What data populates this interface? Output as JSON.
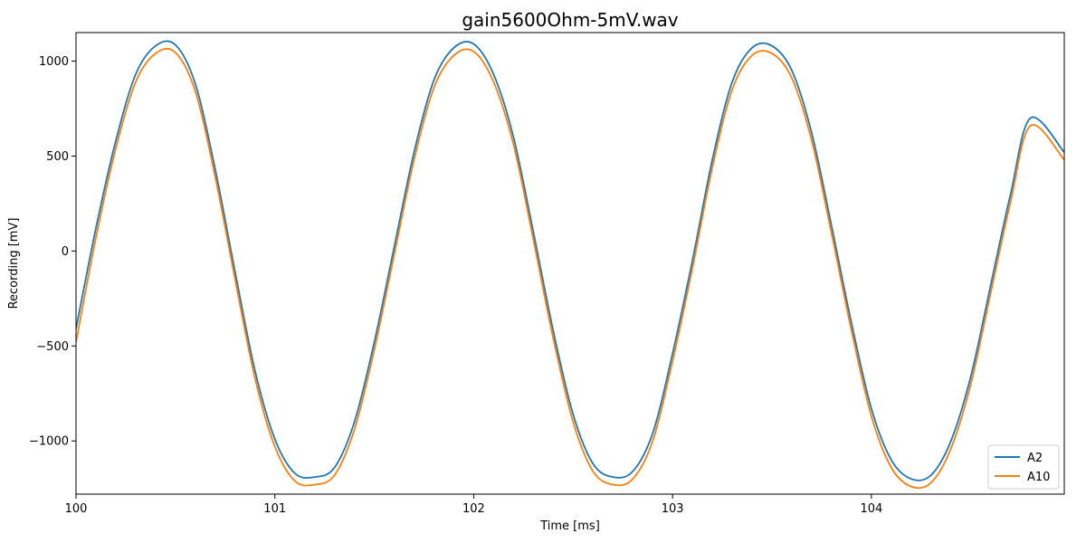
{
  "chart_data": {
    "type": "line",
    "title": "gain5600Ohm-5mV.wav",
    "xlabel": "Time [ms]",
    "ylabel": "Recording [mV]",
    "xlim": [
      100.0,
      104.97
    ],
    "ylim": [
      -1280,
      1150
    ],
    "xticks": [
      100,
      101,
      102,
      103,
      104
    ],
    "xtick_labels": [
      "100",
      "101",
      "102",
      "103",
      "104"
    ],
    "yticks": [
      -1000,
      -500,
      0,
      500,
      1000
    ],
    "ytick_labels": [
      "−1000",
      "−500",
      "0",
      "500",
      "1000"
    ],
    "grid": false,
    "legend_position": "lower-right",
    "series": [
      {
        "name": "A2",
        "color": "#1f77b4",
        "x": [
          100.0,
          100.1,
          100.2,
          100.3,
          100.4,
          100.5,
          100.6,
          100.7,
          100.8,
          100.9,
          101.0,
          101.1,
          101.2,
          101.3,
          101.4,
          101.5,
          101.6,
          101.7,
          101.8,
          101.9,
          102.0,
          102.1,
          102.2,
          102.3,
          102.4,
          102.5,
          102.6,
          102.7,
          102.8,
          102.9,
          103.0,
          103.1,
          103.2,
          103.3,
          103.4,
          103.5,
          103.6,
          103.7,
          103.8,
          103.9,
          104.0,
          104.1,
          104.2,
          104.3,
          104.4,
          104.5,
          104.6,
          104.7,
          104.8,
          104.97
        ],
        "y": [
          -410,
          120,
          580,
          930,
          1080,
          1085,
          880,
          430,
          -110,
          -630,
          -990,
          -1170,
          -1190,
          -1140,
          -900,
          -480,
          20,
          520,
          900,
          1070,
          1090,
          930,
          600,
          100,
          -420,
          -860,
          -1120,
          -1190,
          -1160,
          -960,
          -540,
          -50,
          480,
          890,
          1070,
          1080,
          950,
          620,
          130,
          -380,
          -830,
          -1100,
          -1200,
          -1180,
          -1000,
          -660,
          -180,
          300,
          700,
          520
        ]
      },
      {
        "name": "A10",
        "color": "#ff7f0e",
        "x": [
          100.0,
          100.1,
          100.2,
          100.3,
          100.4,
          100.5,
          100.6,
          100.7,
          100.8,
          100.9,
          101.0,
          101.1,
          101.2,
          101.3,
          101.4,
          101.5,
          101.6,
          101.7,
          101.8,
          101.9,
          102.0,
          102.1,
          102.2,
          102.3,
          102.4,
          102.5,
          102.6,
          102.7,
          102.8,
          102.9,
          103.0,
          103.1,
          103.2,
          103.3,
          103.4,
          103.5,
          103.6,
          103.7,
          103.8,
          103.9,
          104.0,
          104.1,
          104.2,
          104.3,
          104.4,
          104.5,
          104.6,
          104.7,
          104.8,
          104.97
        ],
        "y": [
          -480,
          70,
          540,
          890,
          1040,
          1045,
          840,
          390,
          -150,
          -670,
          -1030,
          -1210,
          -1230,
          -1180,
          -940,
          -520,
          -20,
          480,
          860,
          1030,
          1050,
          890,
          560,
          60,
          -460,
          -900,
          -1160,
          -1230,
          -1200,
          -1000,
          -580,
          -90,
          440,
          850,
          1030,
          1040,
          910,
          580,
          90,
          -420,
          -870,
          -1140,
          -1240,
          -1220,
          -1040,
          -700,
          -220,
          260,
          660,
          480
        ]
      }
    ]
  }
}
